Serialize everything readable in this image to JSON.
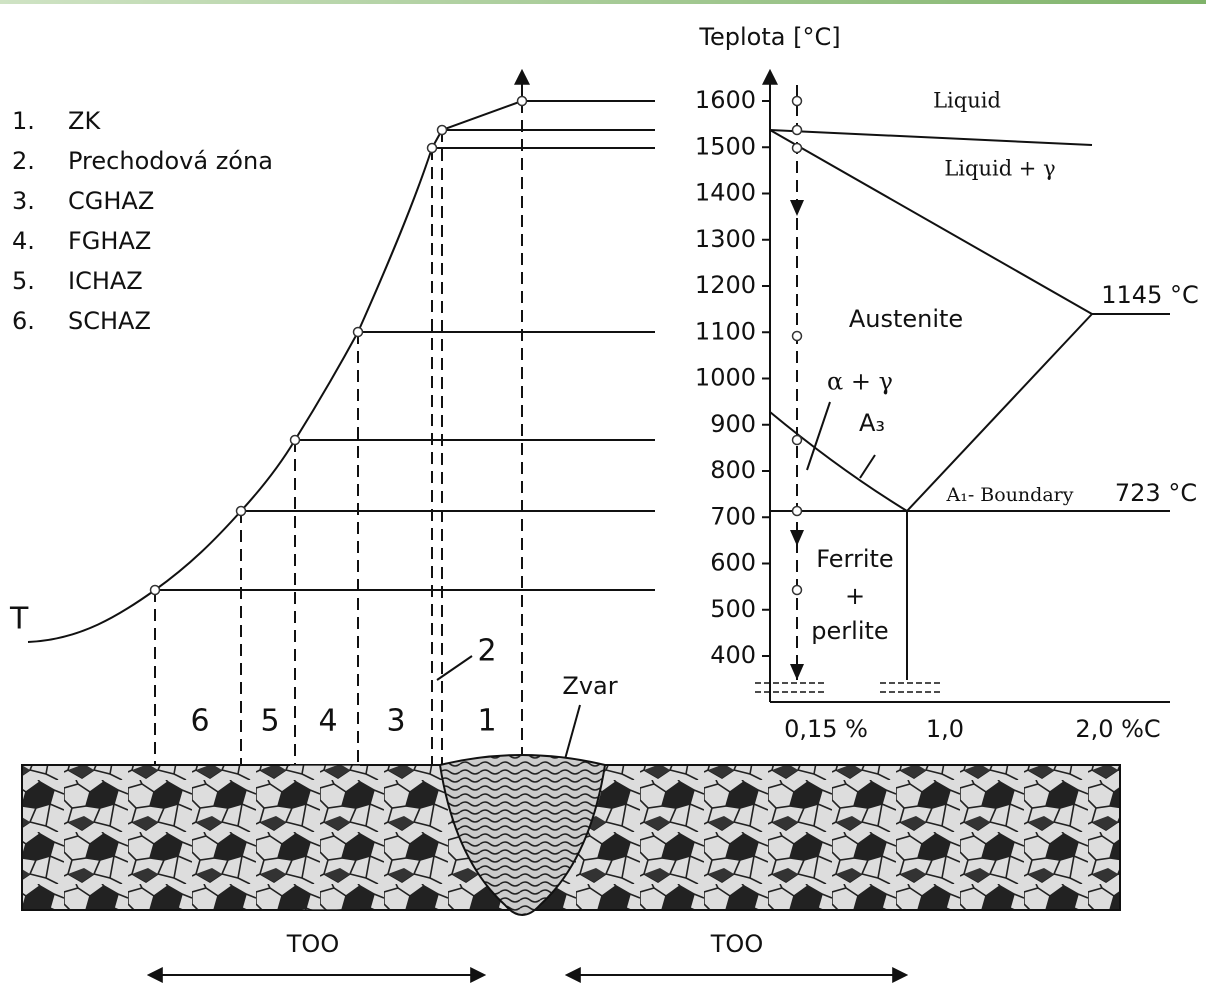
{
  "legend": [
    {
      "number": "1.",
      "label": "ZK"
    },
    {
      "number": "2.",
      "label": "Prechodová zóna"
    },
    {
      "number": "3.",
      "label": "CGHAZ"
    },
    {
      "number": "4.",
      "label": "FGHAZ"
    },
    {
      "number": "5.",
      "label": "ICHAZ"
    },
    {
      "number": "6.",
      "label": "SCHAZ"
    }
  ],
  "temperature_axis": {
    "title": "Teplota [°C]",
    "ticks": [
      1600,
      1500,
      1400,
      1300,
      1200,
      1100,
      1000,
      900,
      800,
      700,
      600,
      500,
      400
    ]
  },
  "phase_labels": {
    "liquid": "Liquid",
    "liquid_gamma": "Liquid + γ",
    "austenite": "Austenite",
    "alpha_gamma": "α + γ",
    "a3": "A₃",
    "a1": "A₁- Boundary"
  },
  "temperatures": {
    "eutectic": "1145 °C",
    "eutectoid": "723 °C"
  },
  "ferrite_perlite": [
    "Ferrite",
    "+",
    "perlite"
  ],
  "composition_axis": [
    "0,15 %",
    "1,0",
    "2,0 %C"
  ],
  "zones": [
    "6",
    "5",
    "4",
    "3",
    "1"
  ],
  "zone_2": "2",
  "curve_label": "T",
  "weld_label": "Zvar",
  "haz_labels": [
    "TOO",
    "TOO"
  ]
}
